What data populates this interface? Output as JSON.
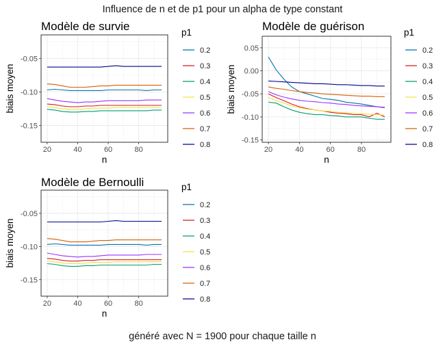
{
  "title": "Influence de n et de p1 pour un alpha de type constant",
  "caption": "généré avec N = 1900 pour chaque taille n",
  "legend": {
    "title": "p1",
    "entries": [
      {
        "label": "0.2",
        "color": "#0072B2"
      },
      {
        "label": "0.3",
        "color": "#D7191C"
      },
      {
        "label": "0.4",
        "color": "#009E73"
      },
      {
        "label": "0.5",
        "color": "#F0E442"
      },
      {
        "label": "0.6",
        "color": "#9B30FF"
      },
      {
        "label": "0.7",
        "color": "#D55E00"
      },
      {
        "label": "0.8",
        "color": "#00008B"
      }
    ]
  },
  "chart_data": [
    {
      "type": "line",
      "title": "Modèle de survie",
      "xlabel": "n",
      "ylabel": "biais moyen",
      "xlim": [
        16,
        99
      ],
      "ylim": [
        -0.175,
        -0.015
      ],
      "xticks": [
        20,
        40,
        60,
        80
      ],
      "yticks": [
        -0.05,
        -0.1,
        -0.15
      ],
      "ytick_labels": [
        "-0.05",
        "-0.10",
        "-0.15"
      ],
      "grid": true,
      "x": [
        20,
        25,
        30,
        35,
        40,
        45,
        50,
        55,
        60,
        65,
        70,
        75,
        80,
        85,
        90,
        95
      ],
      "series": [
        {
          "name": "0.2",
          "values": [
            -0.097,
            -0.096,
            -0.097,
            -0.098,
            -0.098,
            -0.098,
            -0.098,
            -0.098,
            -0.097,
            -0.097,
            -0.097,
            -0.097,
            -0.097,
            -0.098,
            -0.097,
            -0.097
          ]
        },
        {
          "name": "0.3",
          "values": [
            -0.118,
            -0.119,
            -0.121,
            -0.122,
            -0.122,
            -0.121,
            -0.121,
            -0.12,
            -0.12,
            -0.12,
            -0.12,
            -0.12,
            -0.12,
            -0.12,
            -0.12,
            -0.12
          ]
        },
        {
          "name": "0.4",
          "values": [
            -0.126,
            -0.127,
            -0.129,
            -0.13,
            -0.13,
            -0.129,
            -0.129,
            -0.128,
            -0.128,
            -0.128,
            -0.128,
            -0.128,
            -0.128,
            -0.128,
            -0.127,
            -0.127
          ]
        },
        {
          "name": "0.5",
          "values": [
            -0.122,
            -0.123,
            -0.125,
            -0.126,
            -0.126,
            -0.125,
            -0.124,
            -0.124,
            -0.124,
            -0.123,
            -0.123,
            -0.123,
            -0.123,
            -0.123,
            -0.123,
            -0.123
          ]
        },
        {
          "name": "0.6",
          "values": [
            -0.11,
            -0.112,
            -0.114,
            -0.115,
            -0.116,
            -0.115,
            -0.115,
            -0.114,
            -0.113,
            -0.113,
            -0.113,
            -0.113,
            -0.113,
            -0.112,
            -0.112,
            -0.112
          ]
        },
        {
          "name": "0.7",
          "values": [
            -0.088,
            -0.089,
            -0.091,
            -0.093,
            -0.093,
            -0.093,
            -0.092,
            -0.091,
            -0.091,
            -0.09,
            -0.09,
            -0.09,
            -0.09,
            -0.09,
            -0.09,
            -0.09
          ]
        },
        {
          "name": "0.8",
          "values": [
            -0.063,
            -0.063,
            -0.063,
            -0.063,
            -0.063,
            -0.063,
            -0.063,
            -0.063,
            -0.062,
            -0.061,
            -0.062,
            -0.062,
            -0.062,
            -0.062,
            -0.062,
            -0.062
          ]
        }
      ]
    },
    {
      "type": "line",
      "title": "Modèle de guérison",
      "xlabel": "n",
      "ylabel": "biais moyen",
      "xlim": [
        16,
        99
      ],
      "ylim": [
        -0.155,
        0.075
      ],
      "xticks": [
        20,
        40,
        60,
        80
      ],
      "yticks": [
        0.05,
        0.0,
        -0.05,
        -0.1,
        -0.15
      ],
      "ytick_labels": [
        "0.05",
        "0.00",
        "-0.05",
        "-0.10",
        "-0.15"
      ],
      "grid": true,
      "x": [
        20,
        25,
        30,
        35,
        40,
        45,
        50,
        55,
        60,
        65,
        70,
        75,
        80,
        85,
        90,
        95
      ],
      "series": [
        {
          "name": "0.2",
          "values": [
            0.03,
            0.002,
            -0.018,
            -0.035,
            -0.045,
            -0.05,
            -0.055,
            -0.06,
            -0.062,
            -0.064,
            -0.068,
            -0.07,
            -0.072,
            -0.075,
            -0.078,
            -0.08
          ]
        },
        {
          "name": "0.3",
          "values": [
            -0.05,
            -0.058,
            -0.065,
            -0.072,
            -0.078,
            -0.082,
            -0.085,
            -0.087,
            -0.09,
            -0.092,
            -0.093,
            -0.095,
            -0.095,
            -0.1,
            -0.092,
            -0.1
          ]
        },
        {
          "name": "0.4",
          "values": [
            -0.068,
            -0.07,
            -0.078,
            -0.085,
            -0.09,
            -0.093,
            -0.095,
            -0.095,
            -0.097,
            -0.098,
            -0.1,
            -0.1,
            -0.1,
            -0.103,
            -0.105,
            -0.105
          ]
        },
        {
          "name": "0.5",
          "values": [
            -0.058,
            -0.064,
            -0.07,
            -0.076,
            -0.08,
            -0.083,
            -0.085,
            -0.087,
            -0.088,
            -0.09,
            -0.091,
            -0.092,
            -0.093,
            -0.094,
            -0.095,
            -0.096
          ]
        },
        {
          "name": "0.6",
          "values": [
            -0.045,
            -0.052,
            -0.057,
            -0.061,
            -0.064,
            -0.066,
            -0.067,
            -0.069,
            -0.07,
            -0.072,
            -0.073,
            -0.075,
            -0.076,
            -0.077,
            -0.078,
            -0.079
          ]
        },
        {
          "name": "0.7",
          "values": [
            -0.035,
            -0.038,
            -0.04,
            -0.043,
            -0.045,
            -0.047,
            -0.048,
            -0.05,
            -0.051,
            -0.052,
            -0.053,
            -0.054,
            -0.055,
            -0.055,
            -0.056,
            -0.056
          ]
        },
        {
          "name": "0.8",
          "values": [
            -0.022,
            -0.023,
            -0.024,
            -0.025,
            -0.026,
            -0.027,
            -0.028,
            -0.028,
            -0.029,
            -0.03,
            -0.03,
            -0.031,
            -0.032,
            -0.032,
            -0.033,
            -0.033
          ]
        }
      ]
    },
    {
      "type": "line",
      "title": "Modèle de Bernoulli",
      "xlabel": "n",
      "ylabel": "biais moyen",
      "xlim": [
        16,
        99
      ],
      "ylim": [
        -0.175,
        -0.015
      ],
      "xticks": [
        20,
        40,
        60,
        80
      ],
      "yticks": [
        -0.05,
        -0.1,
        -0.15
      ],
      "ytick_labels": [
        "-0.05",
        "-0.10",
        "-0.15"
      ],
      "grid": true,
      "x": [
        20,
        25,
        30,
        35,
        40,
        45,
        50,
        55,
        60,
        65,
        70,
        75,
        80,
        85,
        90,
        95
      ],
      "series": [
        {
          "name": "0.2",
          "values": [
            -0.097,
            -0.096,
            -0.097,
            -0.098,
            -0.098,
            -0.098,
            -0.098,
            -0.098,
            -0.097,
            -0.097,
            -0.097,
            -0.097,
            -0.097,
            -0.098,
            -0.097,
            -0.097
          ]
        },
        {
          "name": "0.3",
          "values": [
            -0.118,
            -0.119,
            -0.121,
            -0.122,
            -0.122,
            -0.121,
            -0.121,
            -0.12,
            -0.12,
            -0.12,
            -0.12,
            -0.12,
            -0.12,
            -0.12,
            -0.12,
            -0.12
          ]
        },
        {
          "name": "0.4",
          "values": [
            -0.126,
            -0.127,
            -0.129,
            -0.13,
            -0.13,
            -0.129,
            -0.129,
            -0.128,
            -0.128,
            -0.128,
            -0.128,
            -0.128,
            -0.128,
            -0.128,
            -0.127,
            -0.127
          ]
        },
        {
          "name": "0.5",
          "values": [
            -0.122,
            -0.123,
            -0.125,
            -0.126,
            -0.126,
            -0.125,
            -0.124,
            -0.124,
            -0.124,
            -0.123,
            -0.123,
            -0.123,
            -0.123,
            -0.123,
            -0.123,
            -0.123
          ]
        },
        {
          "name": "0.6",
          "values": [
            -0.11,
            -0.112,
            -0.114,
            -0.115,
            -0.116,
            -0.115,
            -0.115,
            -0.114,
            -0.113,
            -0.113,
            -0.113,
            -0.113,
            -0.113,
            -0.112,
            -0.112,
            -0.112
          ]
        },
        {
          "name": "0.7",
          "values": [
            -0.088,
            -0.089,
            -0.091,
            -0.093,
            -0.093,
            -0.093,
            -0.092,
            -0.091,
            -0.091,
            -0.09,
            -0.09,
            -0.09,
            -0.09,
            -0.09,
            -0.09,
            -0.09
          ]
        },
        {
          "name": "0.8",
          "values": [
            -0.063,
            -0.063,
            -0.063,
            -0.063,
            -0.063,
            -0.063,
            -0.063,
            -0.063,
            -0.062,
            -0.061,
            -0.062,
            -0.062,
            -0.062,
            -0.062,
            -0.062,
            -0.062
          ]
        }
      ]
    }
  ]
}
